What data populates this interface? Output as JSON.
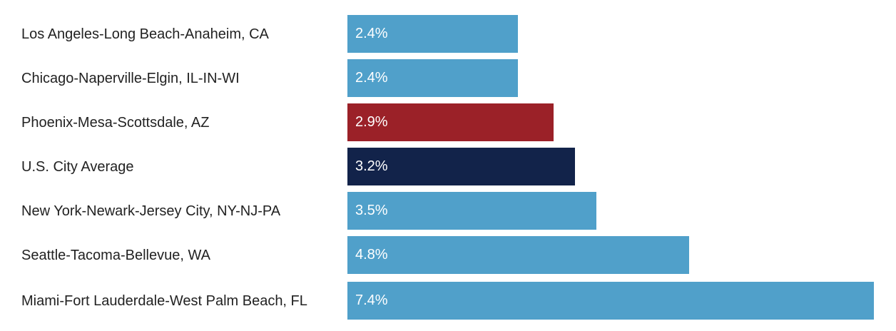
{
  "chart_data": {
    "type": "bar",
    "orientation": "horizontal",
    "categories": [
      "Los Angeles-Long Beach-Anaheim, CA",
      "Chicago-Naperville-Elgin, IL-IN-WI",
      "Phoenix-Mesa-Scottsdale, AZ",
      "U.S. City Average",
      "New York-Newark-Jersey City, NY-NJ-PA",
      "Seattle-Tacoma-Bellevue, WA",
      "Miami-Fort Lauderdale-West Palm Beach, FL"
    ],
    "values": [
      2.4,
      2.4,
      2.9,
      3.2,
      3.5,
      4.8,
      7.4
    ],
    "data_labels": [
      "2.4%",
      "2.4%",
      "2.9%",
      "3.2%",
      "3.5%",
      "4.8%",
      "7.4%"
    ],
    "colors": [
      "#50a0ca",
      "#50a0ca",
      "#9b2128",
      "#12234a",
      "#50a0ca",
      "#50a0ca",
      "#50a0ca"
    ],
    "xlim": [
      0,
      7.4
    ],
    "grid": false,
    "legend": "none"
  }
}
